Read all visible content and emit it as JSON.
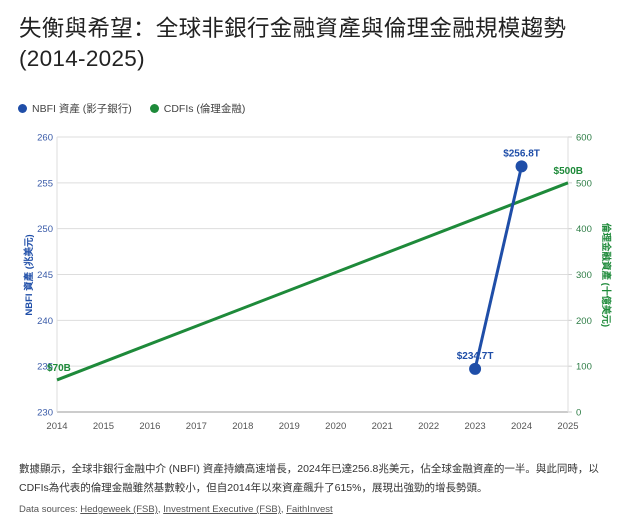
{
  "title": "失衡與希望：全球非銀行金融資產與倫理金融規模趨勢 (2014-2025)",
  "legend": [
    {
      "label": "NBFI 資產 (影子銀行)",
      "color": "#1f4ea8"
    },
    {
      "label": "CDFIs (倫理金融)",
      "color": "#1e8a3a"
    }
  ],
  "description": "數據顯示，全球非銀行金融中介 (NBFI) 資產持續高速增長，2024年已達256.8兆美元，佔全球金融資產的一半。與此同時，以CDFIs為代表的倫理金融雖然基數較小，但自2014年以來資產飆升了615%，展現出強勁的增長勢頭。",
  "sources": {
    "prefix": "Data sources:",
    "links": [
      "Hedgeweek (FSB)",
      "Investment Executive (FSB)",
      "FaithInvest"
    ]
  },
  "chart_data": {
    "type": "line",
    "title": "失衡與希望：全球非銀行金融資產與倫理金融規模趨勢 (2014-2025)",
    "x": [
      2014,
      2015,
      2016,
      2017,
      2018,
      2019,
      2020,
      2021,
      2022,
      2023,
      2024,
      2025
    ],
    "x_tick_labels": [
      "2014",
      "2015",
      "2016",
      "2017",
      "2018",
      "2019",
      "2020",
      "2021",
      "2022",
      "2023",
      "2024",
      "2025"
    ],
    "xlabel": "",
    "y_left": {
      "label": "NBFI 資產 (兆美元)",
      "ylim": [
        230,
        260
      ],
      "ticks": [
        230,
        235,
        240,
        245,
        250,
        255,
        260
      ],
      "color": "#1f4ea8"
    },
    "y_right": {
      "label": "倫理金融資產 (十億美元)",
      "ylim": [
        0,
        600
      ],
      "ticks": [
        0,
        100,
        200,
        300,
        400,
        500,
        600
      ],
      "color": "#1e8a3a"
    },
    "grid": true,
    "legend_position": "top-left",
    "series": [
      {
        "name": "NBFI 資產 (影子銀行)",
        "axis": "left",
        "color": "#1f4ea8",
        "points": [
          {
            "x": 2023,
            "y": 234.7,
            "label": "$234.7T"
          },
          {
            "x": 2024,
            "y": 256.8,
            "label": "$256.8T"
          }
        ]
      },
      {
        "name": "CDFIs (倫理金融)",
        "axis": "right",
        "color": "#1e8a3a",
        "points": [
          {
            "x": 2014,
            "y": 70,
            "label": "$70B"
          },
          {
            "x": 2025,
            "y": 500,
            "label": "$500B"
          }
        ]
      }
    ]
  }
}
